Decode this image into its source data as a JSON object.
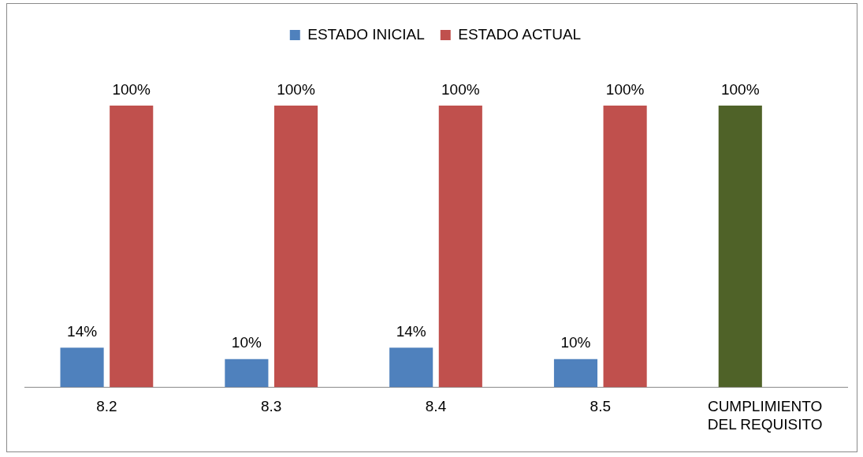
{
  "chart_data": {
    "type": "bar",
    "categories": [
      "8.2",
      "8.3",
      "8.4",
      "8.5",
      "CUMPLIMIENTO DEL REQUISITO"
    ],
    "series": [
      {
        "name": "ESTADO INICIAL",
        "color": "#4f81bd",
        "colors": [
          "#4f81bd",
          "#4f81bd",
          "#4f81bd",
          "#4f81bd",
          "#4f6228"
        ],
        "values": [
          14,
          10,
          14,
          10,
          100
        ],
        "value_labels": [
          "14%",
          "10%",
          "14%",
          "10%",
          "100%"
        ]
      },
      {
        "name": "ESTADO ACTUAL",
        "color": "#c0504d",
        "values": [
          100,
          100,
          100,
          100,
          null
        ],
        "value_labels": [
          "100%",
          "100%",
          "100%",
          "100%",
          null
        ]
      }
    ],
    "ylim": [
      0,
      100
    ],
    "tick_labels": "x",
    "grid": false,
    "legend": "top"
  }
}
